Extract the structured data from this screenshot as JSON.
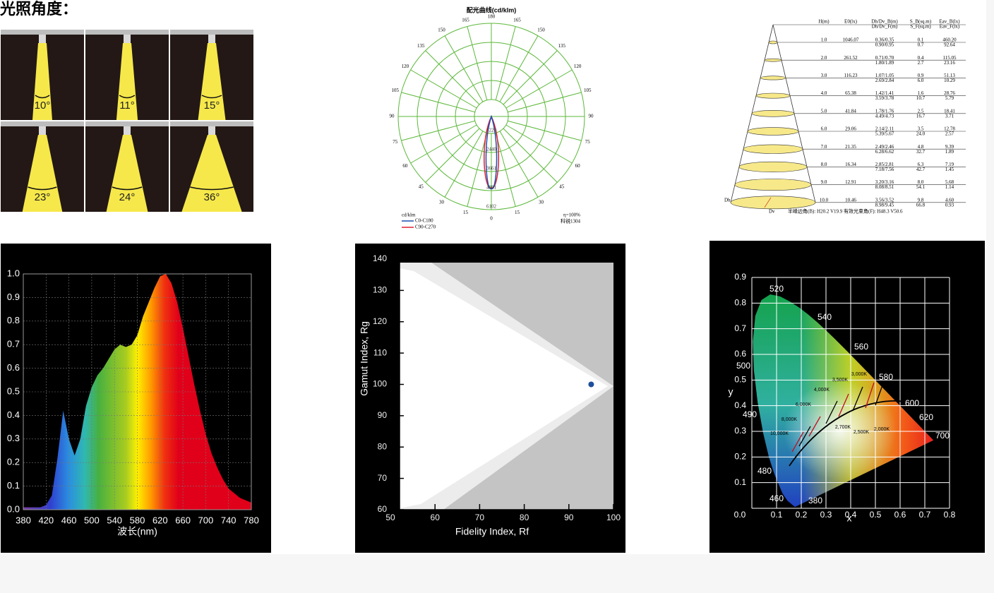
{
  "title": "光照角度：",
  "beam_angles": [
    {
      "value": 10,
      "label": "10°"
    },
    {
      "value": 11,
      "label": "11°"
    },
    {
      "value": 15,
      "label": "15°"
    },
    {
      "value": 23,
      "label": "23°"
    },
    {
      "value": 24,
      "label": "24°"
    },
    {
      "value": 36,
      "label": "36°"
    }
  ],
  "polar": {
    "title": "配光曲线(cd/klm)",
    "angles": [
      0,
      15,
      30,
      45,
      60,
      75,
      90,
      105,
      120,
      135,
      150,
      165,
      180
    ],
    "radial_labels": [
      1220,
      2440,
      3661,
      4881,
      6102
    ],
    "unit": "cd/klm",
    "legend": [
      {
        "name": "C0-C180",
        "color": "#1f4fb0"
      },
      {
        "name": "C90-C270",
        "color": "#e02030"
      }
    ],
    "efficiency": "η=100%",
    "source": "科锐1304"
  },
  "cone": {
    "headers": [
      [
        "H(m)"
      ],
      [
        "E0(lx)"
      ],
      [
        "Dh/Dv_B(m)",
        "Dh/Dv_F(m)"
      ],
      [
        "S_B(sq.m)",
        "S_F(sq.m)"
      ],
      [
        "Eav_B(lx)",
        "Eav_F(lx)"
      ]
    ],
    "rows": [
      [
        "1.0",
        "1046.07",
        "0.36/0.35",
        "0.90/0.95",
        "0.1",
        "0.7",
        "460.20",
        "92.64"
      ],
      [
        "2.0",
        "261.52",
        "0.71/0.70",
        "1.80/1.89",
        "0.4",
        "2.7",
        "115.05",
        "23.16"
      ],
      [
        "3.0",
        "116.23",
        "1.07/1.05",
        "2.69/2.84",
        "0.9",
        "6.0",
        "51.13",
        "10.29"
      ],
      [
        "4.0",
        "65.38",
        "1.42/1.41",
        "3.59/3.78",
        "1.6",
        "10.7",
        "28.76",
        "5.79"
      ],
      [
        "5.0",
        "41.84",
        "1.78/1.76",
        "4.49/4.73",
        "2.5",
        "16.7",
        "18.41",
        "3.71"
      ],
      [
        "6.0",
        "29.06",
        "2.14/2.11",
        "5.39/5.67",
        "3.5",
        "24.0",
        "12.78",
        "2.57"
      ],
      [
        "7.0",
        "21.35",
        "2.49/2.46",
        "6.28/6.62",
        "4.8",
        "32.7",
        "9.39",
        "1.89"
      ],
      [
        "8.0",
        "16.34",
        "2.85/2.81",
        "7.18/7.56",
        "6.3",
        "42.7",
        "7.19",
        "1.45"
      ],
      [
        "9.0",
        "12.91",
        "3.20/3.16",
        "8.08/8.51",
        "8.0",
        "54.1",
        "5.68",
        "1.14"
      ],
      [
        "10.0",
        "10.46",
        "3.56/3.52",
        "8.98/9.45",
        "9.8",
        "66.8",
        "4.60",
        "0.93"
      ]
    ],
    "dh": "Dh",
    "dv": "Dv",
    "footer": "半峰边角(B): H20.2 V19.9  有效光束角(F): H48.3 V50.6"
  },
  "chart_data": [
    {
      "type": "area",
      "x_label": "波长(nm)",
      "x": [
        380,
        390,
        400,
        410,
        420,
        430,
        440,
        450,
        460,
        470,
        480,
        490,
        500,
        510,
        520,
        530,
        540,
        550,
        560,
        570,
        580,
        590,
        600,
        610,
        620,
        630,
        640,
        650,
        660,
        670,
        680,
        690,
        700,
        710,
        720,
        730,
        740,
        750,
        760,
        770,
        780
      ],
      "values": [
        0.01,
        0.01,
        0.01,
        0.01,
        0.02,
        0.06,
        0.22,
        0.42,
        0.3,
        0.23,
        0.3,
        0.44,
        0.52,
        0.57,
        0.6,
        0.64,
        0.68,
        0.7,
        0.69,
        0.7,
        0.74,
        0.82,
        0.88,
        0.94,
        0.99,
        1.0,
        0.96,
        0.88,
        0.77,
        0.65,
        0.53,
        0.42,
        0.32,
        0.24,
        0.18,
        0.13,
        0.09,
        0.07,
        0.05,
        0.04,
        0.03
      ],
      "xlim": [
        380,
        780
      ],
      "ylim": [
        0,
        1
      ],
      "xticks": [
        380,
        420,
        460,
        500,
        540,
        580,
        620,
        660,
        700,
        740,
        780
      ],
      "yticks": [
        {
          "value": 0,
          "label": "0.0"
        },
        {
          "value": 0.1,
          "label": "0.1"
        },
        {
          "value": 0.2,
          "label": "0.2"
        },
        {
          "value": 0.3,
          "label": "0.3"
        },
        {
          "value": 0.4,
          "label": "0.4"
        },
        {
          "value": 0.5,
          "label": "0.5"
        },
        {
          "value": 0.6,
          "label": "0.6"
        },
        {
          "value": 0.7,
          "label": "0.7"
        },
        {
          "value": 0.8,
          "label": "0.8"
        },
        {
          "value": 0.9,
          "label": "0.9"
        },
        {
          "value": 1,
          "label": "1.0"
        }
      ],
      "grid": true
    },
    {
      "type": "scatter",
      "x_label": "Fidelity Index, Rf",
      "y_label": "Gamut Index, Rg",
      "x": [
        95
      ],
      "values": [
        100
      ],
      "color": "#1f4e9c",
      "xlim": [
        50,
        100
      ],
      "ylim": [
        60,
        140
      ],
      "xticks": [
        50,
        60,
        70,
        80,
        90,
        100
      ],
      "yticks": [
        60,
        70,
        80,
        90,
        100,
        110,
        120,
        130,
        140
      ]
    },
    {
      "type": "chromaticity",
      "x_label": "x",
      "y_label": "y",
      "xlim": [
        0,
        0.8
      ],
      "ylim": [
        0,
        0.9
      ],
      "xticks": [
        {
          "value": 0,
          "label": "0.0"
        },
        0.1,
        0.2,
        0.3,
        0.4,
        0.5,
        0.6,
        0.7,
        0.8
      ],
      "yticks": [
        {
          "value": 0,
          "label": "0.0"
        },
        0.1,
        0.2,
        0.3,
        0.4,
        0.5,
        0.6,
        0.7,
        0.8,
        0.9
      ],
      "wavelength_labels": [
        "520",
        "540",
        "560",
        "580",
        "600",
        "620",
        "700",
        "500",
        "490",
        "480",
        "460",
        "380"
      ],
      "cct_labels": [
        "10,000K",
        "8,000K",
        "6,000K",
        "4,000K",
        "3,500K",
        "3,000K",
        "2,700K",
        "2,500K",
        "2,000K"
      ],
      "grid": true
    }
  ]
}
